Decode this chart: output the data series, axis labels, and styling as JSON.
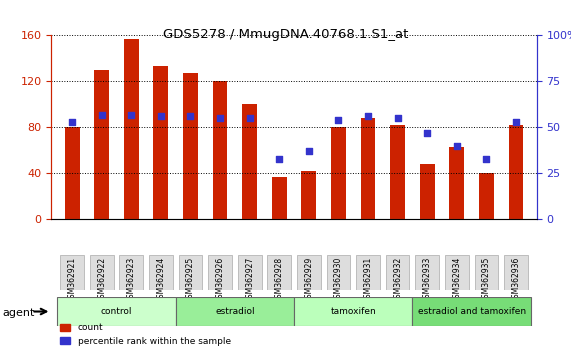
{
  "title": "GDS5278 / MmugDNA.40768.1.S1_at",
  "samples": [
    "GSM362921",
    "GSM362922",
    "GSM362923",
    "GSM362924",
    "GSM362925",
    "GSM362926",
    "GSM362927",
    "GSM362928",
    "GSM362929",
    "GSM362930",
    "GSM362931",
    "GSM362932",
    "GSM362933",
    "GSM362934",
    "GSM362935",
    "GSM362936"
  ],
  "counts": [
    80,
    130,
    157,
    133,
    127,
    120,
    100,
    37,
    42,
    80,
    88,
    82,
    48,
    63,
    40,
    82
  ],
  "percentile_ranks": [
    53,
    57,
    57,
    56,
    56,
    55,
    55,
    33,
    37,
    54,
    56,
    55,
    47,
    40,
    33,
    53
  ],
  "groups": [
    {
      "label": "control",
      "start": 0,
      "end": 4,
      "color": "#ccffcc"
    },
    {
      "label": "estradiol",
      "start": 4,
      "end": 8,
      "color": "#99ee99"
    },
    {
      "label": "tamoxifen",
      "start": 8,
      "end": 12,
      "color": "#bbffbb"
    },
    {
      "label": "estradiol and tamoxifen",
      "start": 12,
      "end": 16,
      "color": "#77dd77"
    }
  ],
  "agent_label": "agent",
  "bar_color": "#cc2200",
  "dot_color": "#3333cc",
  "ylim_left": [
    0,
    160
  ],
  "ylim_right": [
    0,
    100
  ],
  "yticks_left": [
    0,
    40,
    80,
    120,
    160
  ],
  "yticks_right": [
    0,
    25,
    50,
    75,
    100
  ],
  "grid_color": "#000000",
  "bg_color": "#ffffff",
  "bar_width": 0.5
}
